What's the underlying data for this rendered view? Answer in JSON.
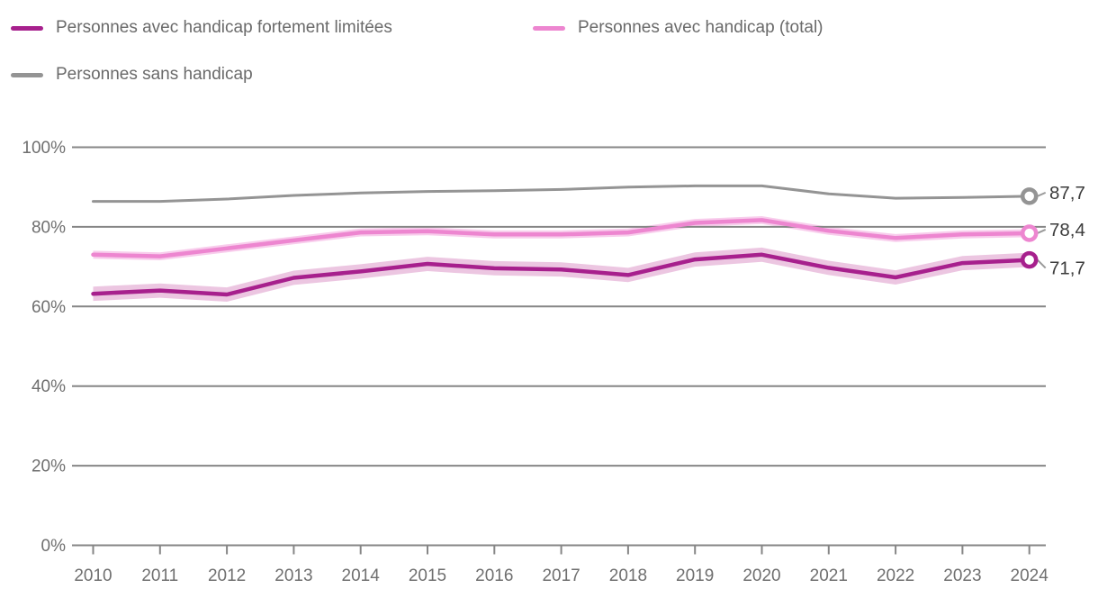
{
  "chart_data": {
    "type": "line",
    "title": "",
    "xlabel": "",
    "ylabel": "",
    "ylim": [
      0,
      100
    ],
    "grid": true,
    "legend_position": "top",
    "categories": [
      "2010",
      "2011",
      "2012",
      "2013",
      "2014",
      "2015",
      "2016",
      "2017",
      "2018",
      "2019",
      "2020",
      "2021",
      "2022",
      "2023",
      "2024"
    ],
    "y_ticks": [
      {
        "label": "0%",
        "value": 0
      },
      {
        "label": "20%",
        "value": 20
      },
      {
        "label": "40%",
        "value": 40
      },
      {
        "label": "60%",
        "value": 60
      },
      {
        "label": "80%",
        "value": 80
      },
      {
        "label": "100%",
        "value": 100
      }
    ],
    "series": [
      {
        "name": "Personnes avec handicap fortement limitées",
        "color": "#a7208d",
        "band_color": "#ecc6e1",
        "band_delta": 1.8,
        "line_width": 4.5,
        "values": [
          63.2,
          64.0,
          63.0,
          67.2,
          68.8,
          70.7,
          69.6,
          69.3,
          67.9,
          71.8,
          73.0,
          69.7,
          67.3,
          70.9,
          71.7
        ],
        "end_label": "71,7",
        "end_label_dy": 9
      },
      {
        "name": "Personnes avec handicap (total)",
        "color": "#ed86d0",
        "band_color": "#f8cdec",
        "band_delta": 1.0,
        "line_width": 4.5,
        "values": [
          73.0,
          72.6,
          74.6,
          76.6,
          78.6,
          78.9,
          78.1,
          78.1,
          78.6,
          81.0,
          81.7,
          79.0,
          77.2,
          78.1,
          78.4
        ],
        "end_label": "78,4",
        "end_label_dy": -4
      },
      {
        "name": "Personnes sans handicap",
        "color": "#949494",
        "band_color": null,
        "band_delta": null,
        "line_width": 3,
        "values": [
          86.4,
          86.4,
          87.0,
          87.9,
          88.5,
          88.9,
          89.1,
          89.4,
          90.0,
          90.3,
          90.3,
          88.3,
          87.2,
          87.4,
          87.7
        ],
        "end_label": "87,7",
        "end_label_dy": -4
      }
    ],
    "style": {
      "grid_color": "#868686",
      "tick_text_color": "#6f6f6f",
      "end_label_color": "#3c3c3c",
      "leader_color": "#9a9a9a",
      "marker_fill": "#ffffff"
    }
  }
}
